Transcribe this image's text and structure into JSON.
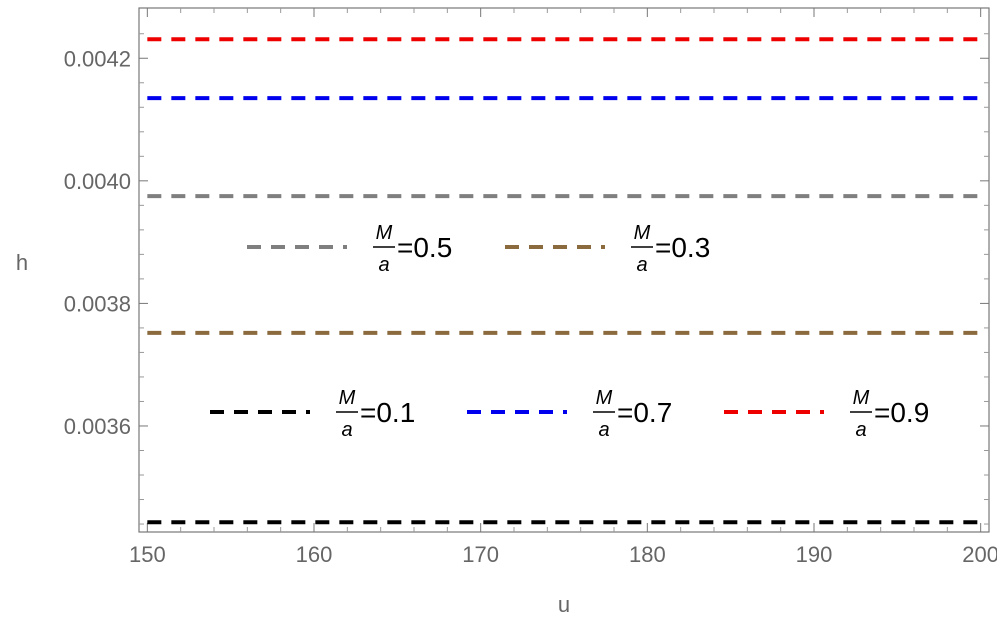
{
  "chart_data": {
    "type": "line",
    "xlabel": "u",
    "ylabel": "h",
    "xlim": [
      149.5,
      200.5
    ],
    "ylim": [
      0.003427,
      0.004282
    ],
    "x_ticks": [
      150,
      160,
      170,
      180,
      190,
      200
    ],
    "x_tick_labels": [
      "150",
      "160",
      "170",
      "180",
      "190",
      "200"
    ],
    "y_ticks": [
      0.0036,
      0.0038,
      0.004,
      0.0042
    ],
    "y_tick_labels": [
      "0.0036",
      "0.0038",
      "0.0040",
      "0.0042"
    ],
    "x": [
      150,
      200
    ],
    "series": [
      {
        "name": "M/a=0.1",
        "ratio_label": "=0.1",
        "color": "#000000",
        "values": [
          0.003443,
          0.003443
        ]
      },
      {
        "name": "M/a=0.3",
        "ratio_label": "=0.3",
        "color": "#8B6A3E",
        "values": [
          0.003752,
          0.003752
        ]
      },
      {
        "name": "M/a=0.5",
        "ratio_label": "=0.5",
        "color": "#7F7F7F",
        "values": [
          0.003975,
          0.003975
        ]
      },
      {
        "name": "M/a=0.7",
        "ratio_label": "=0.7",
        "color": "#0000EE",
        "values": [
          0.004135,
          0.004135
        ]
      },
      {
        "name": "M/a=0.9",
        "ratio_label": "=0.9",
        "color": "#EE0000",
        "values": [
          0.004231,
          0.004231
        ]
      }
    ],
    "legend": {
      "frac_numerator": "M",
      "frac_denominator": "a",
      "rows": [
        [
          "M/a=0.5",
          "M/a=0.3"
        ],
        [
          "M/a=0.1",
          "M/a=0.7",
          "M/a=0.9"
        ]
      ],
      "placement": "inside plot, middle"
    },
    "line_style": "dashed",
    "frame": "box"
  }
}
